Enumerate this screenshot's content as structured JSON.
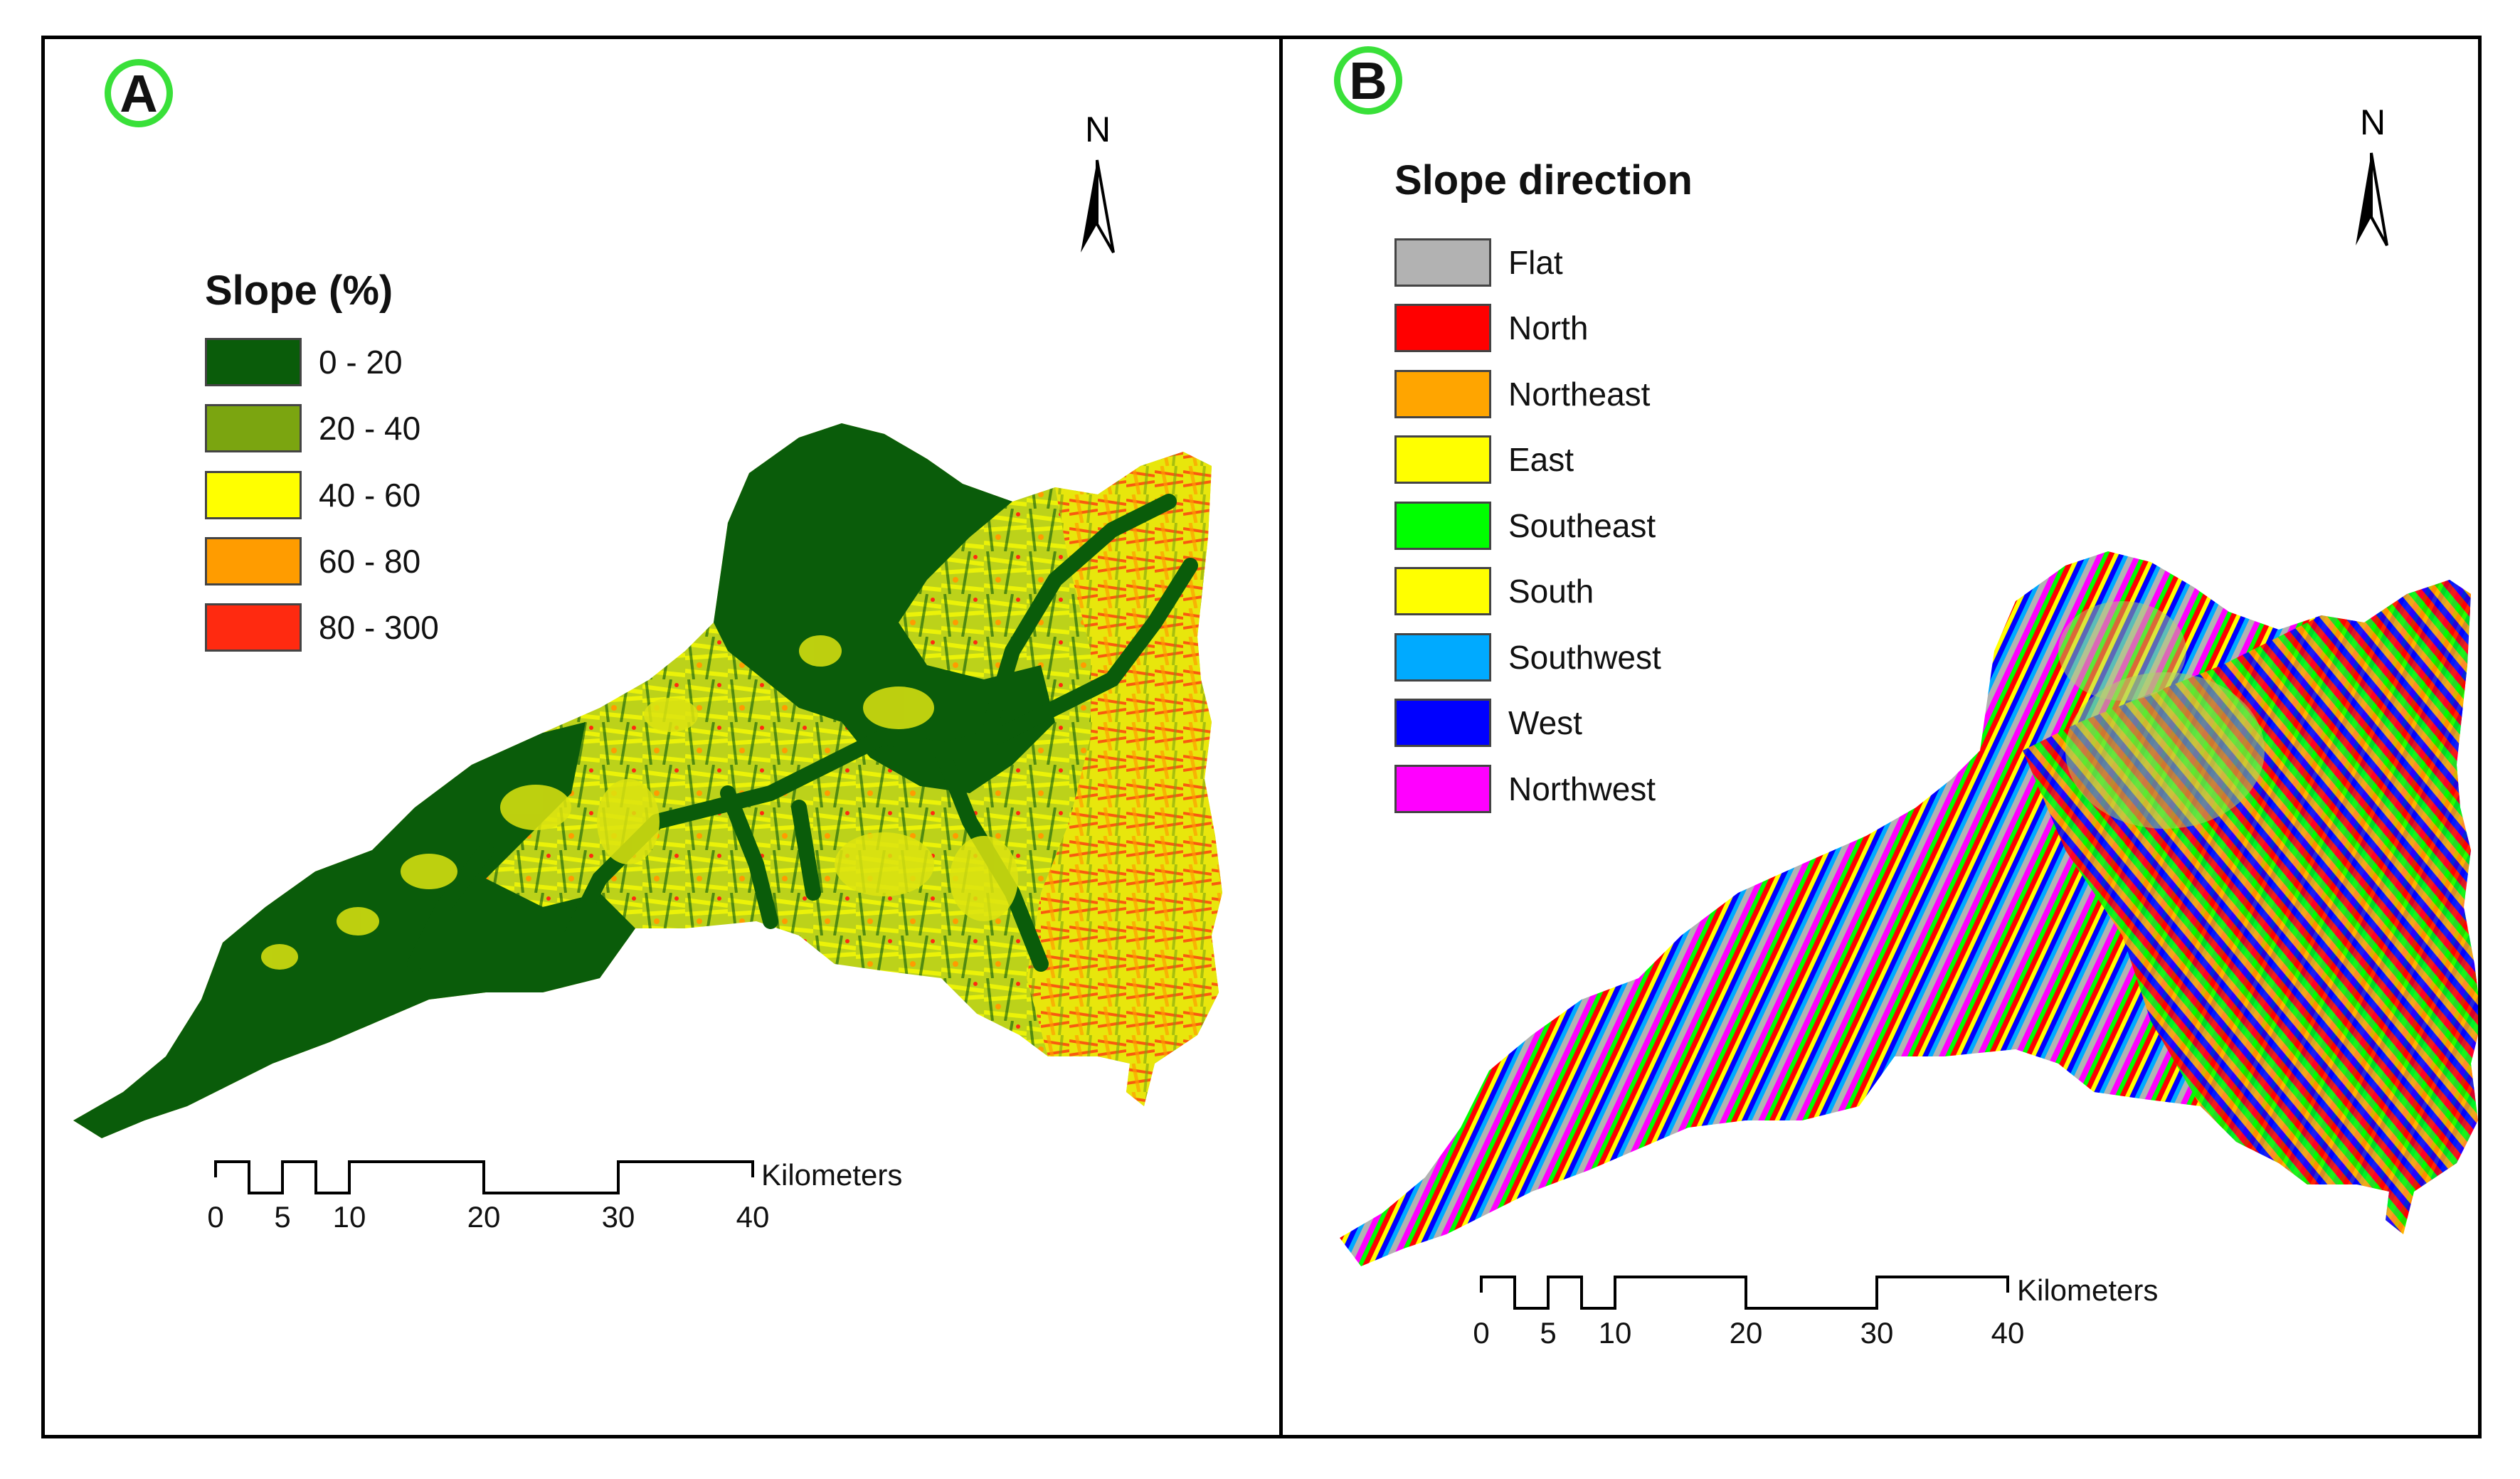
{
  "panel_a": {
    "badge": "A",
    "north": "N",
    "legend": {
      "title": "Slope (%)",
      "items": [
        {
          "label": "0 - 20",
          "color": "#0a5c0a"
        },
        {
          "label": "20 - 40",
          "color": "#7ba510"
        },
        {
          "label": "40 - 60",
          "color": "#ffff00"
        },
        {
          "label": "60 - 80",
          "color": "#ff9c00"
        },
        {
          "label": "80 - 300",
          "color": "#ff2a10"
        }
      ]
    },
    "scale": {
      "unit": "Kilometers",
      "ticks": [
        "0",
        "5",
        "10",
        "20",
        "30",
        "40"
      ]
    }
  },
  "panel_b": {
    "badge": "B",
    "north": "N",
    "legend": {
      "title": "Slope direction",
      "items": [
        {
          "label": "Flat",
          "color": "#b2b2b2"
        },
        {
          "label": "North",
          "color": "#ff0000"
        },
        {
          "label": "Northeast",
          "color": "#ffa500"
        },
        {
          "label": "East",
          "color": "#ffff00"
        },
        {
          "label": "Southeast",
          "color": "#00ff00"
        },
        {
          "label": "South",
          "color": "#ffff00"
        },
        {
          "label": "Southwest",
          "color": "#00aaff"
        },
        {
          "label": "West",
          "color": "#0000ff"
        },
        {
          "label": "Northwest",
          "color": "#ff00ff"
        }
      ]
    },
    "scale": {
      "unit": "Kilometers",
      "ticks": [
        "0",
        "5",
        "10",
        "20",
        "30",
        "40"
      ]
    }
  }
}
